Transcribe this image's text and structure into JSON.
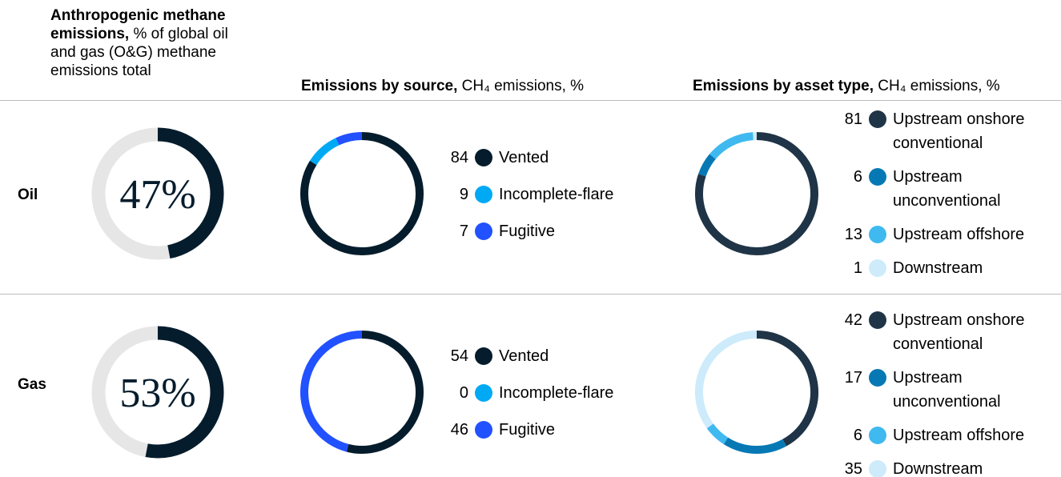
{
  "columns": [
    {
      "title": "Anthropogenic methane emissions,",
      "subtitle": "% of global oil and gas (O&G) methane emissions total"
    },
    {
      "title": "Emissions by source,",
      "subtitle": "CH₄ emissions, %"
    },
    {
      "title": "Emissions by asset type,",
      "subtitle": "CH₄ emissions, %"
    }
  ],
  "rows": [
    "Oil",
    "Gas"
  ],
  "chart_data": [
    {
      "type": "gauge",
      "values": [
        47
      ],
      "value_labels": [
        "47%"
      ],
      "ylim": [
        0,
        100
      ],
      "color": "#051c2c",
      "track_color": "#e6e6e6"
    },
    {
      "type": "donut",
      "categories": [
        "Vented",
        "Incomplete-flare",
        "Fugitive"
      ],
      "values": [
        84,
        9,
        7
      ],
      "colors": [
        "#051c2c",
        "#00a9f4",
        "#2251ff"
      ]
    },
    {
      "type": "donut",
      "categories": [
        "Upstream onshore conventional",
        "Upstream unconventional",
        "Upstream offshore",
        "Downstream"
      ],
      "values": [
        81,
        6,
        13,
        1
      ],
      "colors": [
        "#1f3446",
        "#0679b5",
        "#3fb9f0",
        "#cdebfb"
      ]
    },
    {
      "type": "gauge",
      "values": [
        53
      ],
      "value_labels": [
        "53%"
      ],
      "ylim": [
        0,
        100
      ],
      "color": "#051c2c",
      "track_color": "#e6e6e6"
    },
    {
      "type": "donut",
      "categories": [
        "Vented",
        "Incomplete-flare",
        "Fugitive"
      ],
      "values": [
        54,
        0,
        46
      ],
      "colors": [
        "#051c2c",
        "#00a9f4",
        "#2251ff"
      ]
    },
    {
      "type": "donut",
      "categories": [
        "Upstream onshore conventional",
        "Upstream unconventional",
        "Upstream offshore",
        "Downstream"
      ],
      "values": [
        42,
        17,
        6,
        35
      ],
      "colors": [
        "#1f3446",
        "#0679b5",
        "#3fb9f0",
        "#cdebfb"
      ]
    }
  ]
}
